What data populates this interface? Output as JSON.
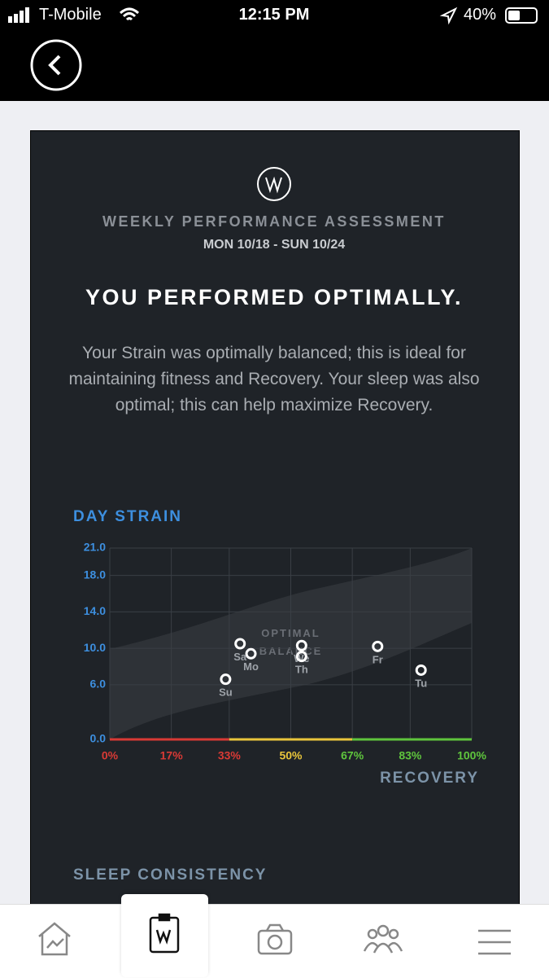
{
  "status_bar": {
    "carrier": "T-Mobile",
    "time": "12:15 PM",
    "battery": "40%"
  },
  "header": {
    "subtitle": "WEEKLY PERFORMANCE ASSESSMENT",
    "date_range": "MON 10/18 - SUN 10/24",
    "headline": "YOU PERFORMED OPTIMALLY.",
    "summary": "Your Strain was optimally balanced; this is ideal for maintaining fitness and Recovery. Your sleep was also optimal; this can help maximize Recovery."
  },
  "chart_data": {
    "type": "scatter",
    "title": "DAY STRAIN",
    "xlabel": "RECOVERY",
    "annotation": "OPTIMAL BALANCE",
    "x": [
      32,
      86,
      53,
      53,
      74,
      36,
      39
    ],
    "values": [
      6.6,
      7.6,
      10.3,
      9.1,
      10.2,
      10.5,
      9.4
    ],
    "point_labels": [
      "Su",
      "Tu",
      "We",
      "Th",
      "Fr",
      "Sa",
      "Mo"
    ],
    "color": "#ffffff",
    "xlim": [
      0,
      100
    ],
    "ylim": [
      0,
      21
    ],
    "xticks": [
      {
        "value": 0,
        "label": "0%",
        "color": "#d93a35"
      },
      {
        "value": 17,
        "label": "17%",
        "color": "#d93a35"
      },
      {
        "value": 33,
        "label": "33%",
        "color": "#d93a35"
      },
      {
        "value": 50,
        "label": "50%",
        "color": "#e9c53b"
      },
      {
        "value": 67,
        "label": "67%",
        "color": "#5fc53d"
      },
      {
        "value": 83,
        "label": "83%",
        "color": "#5fc53d"
      },
      {
        "value": 100,
        "label": "100%",
        "color": "#5fc53d"
      }
    ],
    "yticks": [
      {
        "value": 0,
        "label": "0.0"
      },
      {
        "value": 6,
        "label": "6.0"
      },
      {
        "value": 10,
        "label": "10.0"
      },
      {
        "value": 14,
        "label": "14.0"
      },
      {
        "value": 18,
        "label": "18.0"
      },
      {
        "value": 21,
        "label": "21.0"
      }
    ],
    "zones": [
      {
        "from": 0,
        "to": 33,
        "color": "#d93a35"
      },
      {
        "from": 33,
        "to": 67,
        "color": "#e9c53b"
      },
      {
        "from": 67,
        "to": 100,
        "color": "#5fc53d"
      }
    ],
    "grid": true
  },
  "next_section": "SLEEP CONSISTENCY"
}
